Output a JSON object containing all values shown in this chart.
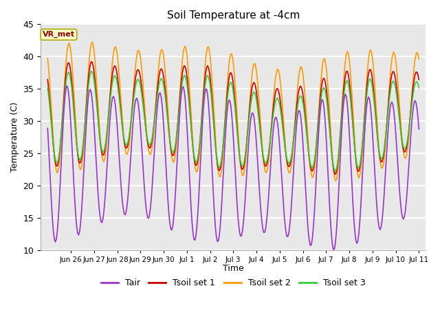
{
  "title": "Soil Temperature at -4cm",
  "xlabel": "Time",
  "ylabel": "Temperature (C)",
  "ylim": [
    10,
    45
  ],
  "background_color": "#e8e8e8",
  "grid_color": "white",
  "colors": {
    "Tair": "#9932CC",
    "Tsoil1": "#cc0000",
    "Tsoil2": "#ff9900",
    "Tsoil3": "#33cc33"
  },
  "legend_labels": [
    "Tair",
    "Tsoil set 1",
    "Tsoil set 2",
    "Tsoil set 3"
  ],
  "annotation_text": "VR_met",
  "annotation_color": "#8b0000",
  "annotation_bg": "#ffffcc",
  "tick_labels": [
    "Jun 26",
    "Jun 27",
    "Jun 28",
    "Jun 29",
    "Jun 30",
    "Jul 1",
    "Jul 2",
    "Jul 3",
    "Jul 4",
    "Jul 5",
    "Jul 6",
    "Jul 7",
    "Jul 8",
    "Jul 9",
    "Jul 10",
    "Jul 11"
  ]
}
